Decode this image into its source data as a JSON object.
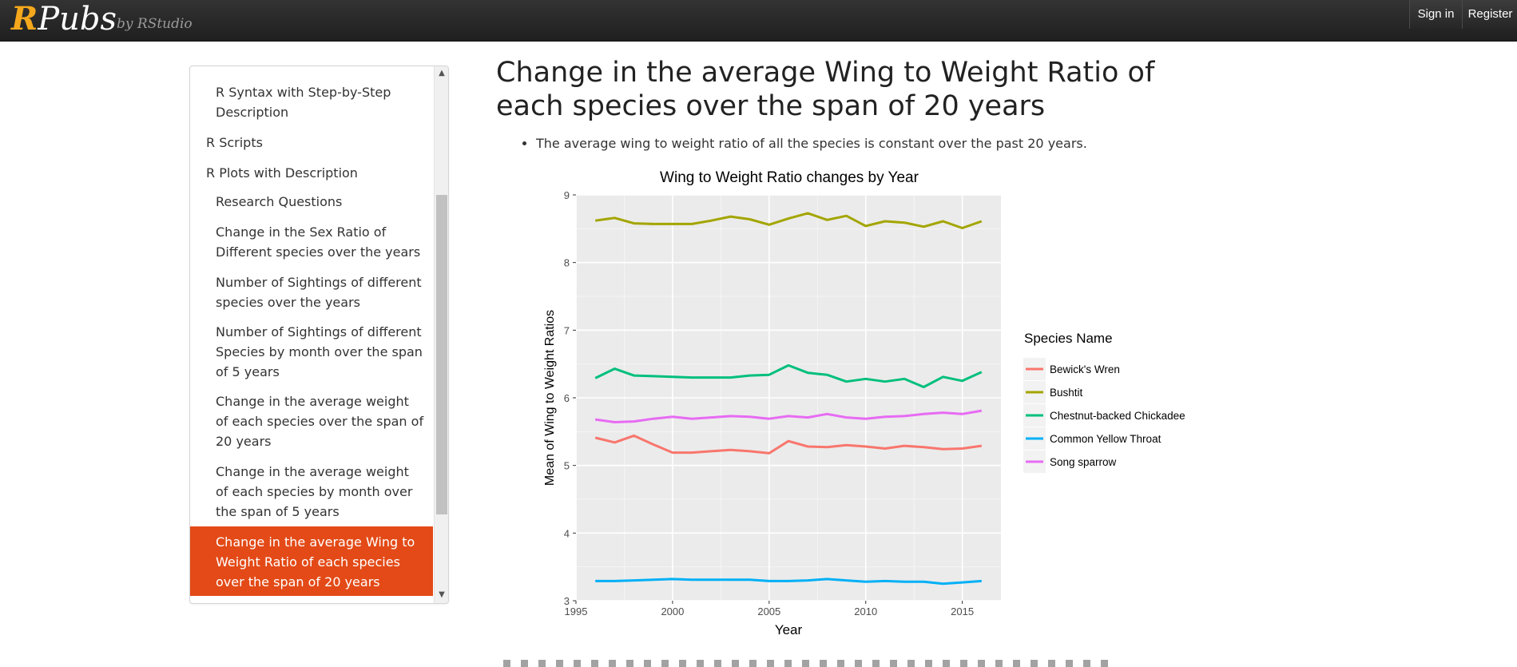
{
  "header": {
    "logo_r": "R",
    "logo_rest": "Pubs",
    "byline": "by RStudio",
    "signin_label": "Sign in",
    "register_label": "Register"
  },
  "toc": {
    "items": [
      {
        "label": "R Syntax with Step-by-Step Description",
        "level": 2,
        "active": false
      },
      {
        "label": "R Scripts",
        "level": 1,
        "active": false
      },
      {
        "label": "R Plots with Description",
        "level": 1,
        "active": false
      },
      {
        "label": "Research Questions",
        "level": 2,
        "active": false
      },
      {
        "label": "Change in the Sex Ratio of Different species over the years",
        "level": 2,
        "active": false
      },
      {
        "label": "Number of Sightings of different species over the years",
        "level": 2,
        "active": false
      },
      {
        "label": "Number of Sightings of different Species by month over the span of 5 years",
        "level": 2,
        "active": false
      },
      {
        "label": "Change in the average weight of each species over the span of 20 years",
        "level": 2,
        "active": false
      },
      {
        "label": "Change in the average weight of each species by month over the span of 5 years",
        "level": 2,
        "active": false
      },
      {
        "label": "Change in the average Wing to Weight Ratio of each species over the span of 20 years",
        "level": 2,
        "active": true
      }
    ],
    "active_color": "#e34a17"
  },
  "main": {
    "title": "Change in the average Wing to Weight Ratio of each species over the span of 20 years",
    "bullets": [
      "The average wing to weight ratio of all the species is constant over the past 20 years."
    ]
  },
  "chart_data": {
    "type": "line",
    "title": "Wing to Weight Ratio changes by Year",
    "xlabel": "Year",
    "ylabel": "Mean of Wing to Weight Ratios",
    "xlim": [
      1995,
      2017
    ],
    "ylim": [
      3,
      9
    ],
    "xticks": [
      1995,
      2000,
      2005,
      2010,
      2015
    ],
    "yticks": [
      3,
      4,
      5,
      6,
      7,
      8,
      9
    ],
    "grid": true,
    "legend_title": "Species Name",
    "legend_position": "right",
    "x": [
      1996,
      1997,
      1998,
      1999,
      2000,
      2001,
      2002,
      2003,
      2004,
      2005,
      2006,
      2007,
      2008,
      2009,
      2010,
      2011,
      2012,
      2013,
      2014,
      2015,
      2016
    ],
    "series": [
      {
        "name": "Bewick's Wren",
        "color": "#f8766d",
        "values": [
          5.41,
          5.34,
          5.44,
          5.31,
          5.19,
          5.19,
          5.21,
          5.23,
          5.21,
          5.18,
          5.36,
          5.28,
          5.27,
          5.3,
          5.28,
          5.25,
          5.29,
          5.27,
          5.24,
          5.25,
          5.29
        ]
      },
      {
        "name": "Bushtit",
        "color": "#a3a500",
        "values": [
          8.62,
          8.66,
          8.58,
          8.57,
          8.57,
          8.57,
          8.62,
          8.68,
          8.64,
          8.56,
          8.65,
          8.73,
          8.63,
          8.69,
          8.54,
          8.61,
          8.59,
          8.53,
          8.61,
          8.51,
          8.61
        ]
      },
      {
        "name": "Chestnut-backed Chickadee",
        "color": "#00bf7d",
        "values": [
          6.29,
          6.43,
          6.33,
          6.32,
          6.31,
          6.3,
          6.3,
          6.3,
          6.33,
          6.34,
          6.48,
          6.37,
          6.34,
          6.24,
          6.28,
          6.24,
          6.28,
          6.16,
          6.31,
          6.25,
          6.38
        ]
      },
      {
        "name": "Common Yellow Throat",
        "color": "#00b0f6",
        "values": [
          3.29,
          3.29,
          3.3,
          3.31,
          3.32,
          3.31,
          3.31,
          3.31,
          3.31,
          3.29,
          3.29,
          3.3,
          3.32,
          3.3,
          3.28,
          3.29,
          3.28,
          3.28,
          3.25,
          3.27,
          3.29
        ]
      },
      {
        "name": "Song sparrow",
        "color": "#e76bf3",
        "values": [
          5.68,
          5.64,
          5.65,
          5.69,
          5.72,
          5.69,
          5.71,
          5.73,
          5.72,
          5.69,
          5.73,
          5.71,
          5.76,
          5.71,
          5.69,
          5.72,
          5.73,
          5.76,
          5.78,
          5.76,
          5.81
        ]
      }
    ]
  }
}
